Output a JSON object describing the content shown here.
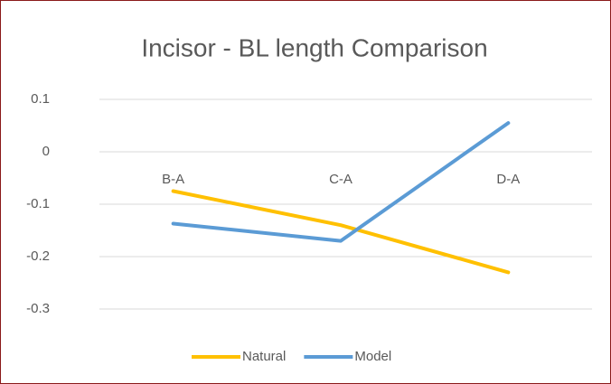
{
  "chart_data": {
    "type": "line",
    "title": "Incisor - BL length Comparison",
    "categories": [
      "B-A",
      "C-A",
      "D-A"
    ],
    "series": [
      {
        "name": "Natural",
        "color": "#ffc000",
        "values": [
          -0.075,
          -0.14,
          -0.23
        ]
      },
      {
        "name": "Model",
        "color": "#5b9bd5",
        "values": [
          -0.137,
          -0.17,
          0.055
        ]
      }
    ],
    "ylim": [
      -0.3,
      0.1
    ],
    "yticks": [
      -0.3,
      -0.2,
      -0.1,
      0,
      0.1
    ],
    "grid": true,
    "legend": "bottom"
  }
}
